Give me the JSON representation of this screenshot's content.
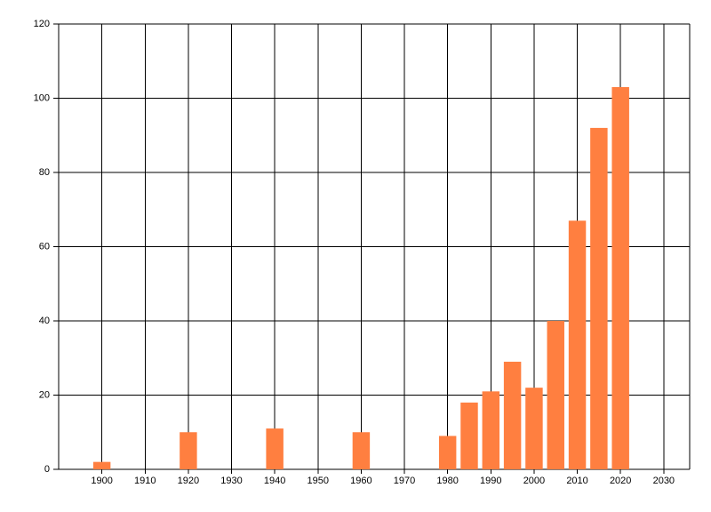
{
  "chart_data": {
    "type": "bar",
    "x": [
      1900,
      1920,
      1940,
      1960,
      1980,
      1985,
      1990,
      1995,
      2000,
      2005,
      2010,
      2015,
      2020
    ],
    "values": [
      2,
      10,
      11,
      10,
      9,
      18,
      21,
      29,
      22,
      40,
      67,
      92,
      103
    ],
    "color": "#ff7f40",
    "xlim": [
      1890,
      2036
    ],
    "xticks": [
      1900,
      1910,
      1920,
      1930,
      1940,
      1950,
      1960,
      1970,
      1980,
      1990,
      2000,
      2010,
      2020,
      2030
    ],
    "ylim": [
      0,
      120
    ],
    "yticks": [
      0,
      20,
      40,
      60,
      80,
      100,
      120
    ],
    "grid": true
  }
}
